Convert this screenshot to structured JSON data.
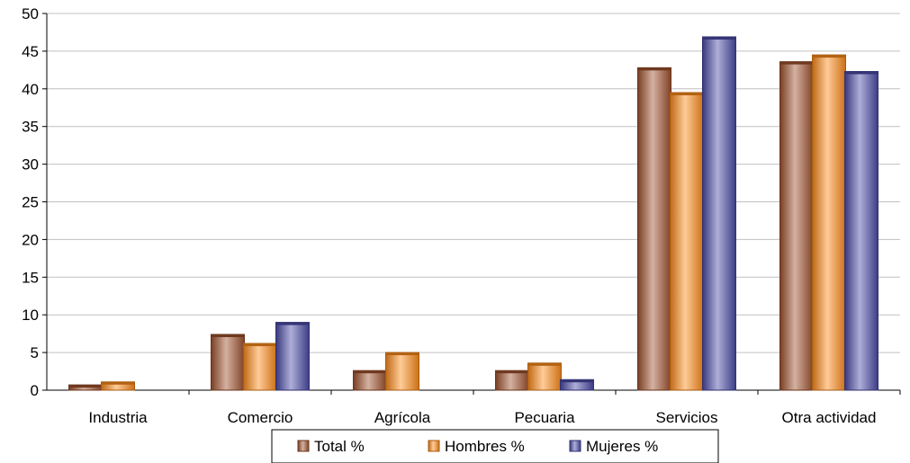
{
  "chart_data": {
    "type": "bar",
    "title": "",
    "xlabel": "",
    "ylabel": "",
    "categories": [
      "Industria",
      "Comercio",
      "Agrícola",
      "Pecuaria",
      "Servicios",
      "Otra actividad"
    ],
    "series": [
      {
        "name": "Total %",
        "values": [
          0.7,
          7.4,
          2.6,
          2.6,
          42.8,
          43.6
        ],
        "color": "#a0522d"
      },
      {
        "name": "Hombres %",
        "values": [
          1.1,
          6.2,
          5.0,
          3.6,
          39.5,
          44.5
        ],
        "color": "#ff8c1a"
      },
      {
        "name": "Mujeres %",
        "values": [
          0.0,
          9.0,
          0.0,
          1.4,
          46.9,
          42.3
        ],
        "color": "#4b4ba8"
      }
    ],
    "ylim": [
      0,
      50
    ],
    "yticks": [
      0,
      5,
      10,
      15,
      20,
      25,
      30,
      35,
      40,
      45,
      50
    ],
    "grid": true,
    "legend_position": "bottom-center"
  }
}
